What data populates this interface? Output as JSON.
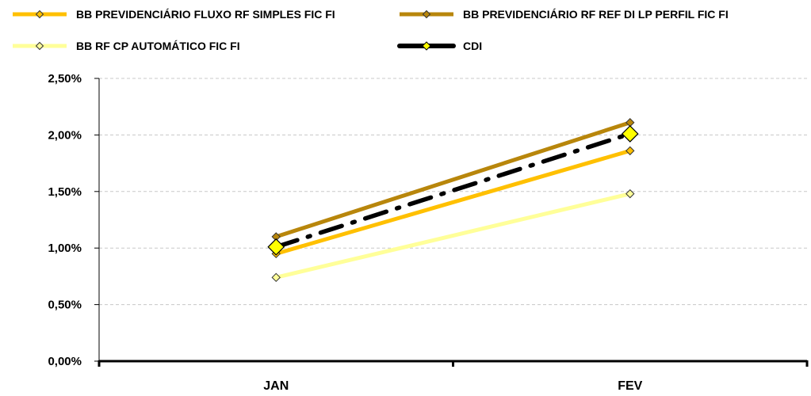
{
  "chart_data": {
    "type": "line",
    "categories": [
      "JAN",
      "FEV"
    ],
    "y_tick_labels": [
      "0,00%",
      "0,50%",
      "1,00%",
      "1,50%",
      "2,00%",
      "2,50%"
    ],
    "ylim": [
      0,
      2.5
    ],
    "y_unit": "percent",
    "grid": "horizontal-dashed",
    "legend_position": "top",
    "series": [
      {
        "name": "BB PREVIDENCIÁRIO FLUXO RF SIMPLES FIC FI",
        "values": [
          0.95,
          1.86
        ],
        "color": "#FFC000",
        "style": "solid",
        "marker": "diamond"
      },
      {
        "name": "BB PREVIDENCIÁRIO RF REF DI LP PERFIL FIC FI",
        "values": [
          1.1,
          2.11
        ],
        "color": "#B8860B",
        "style": "solid",
        "marker": "diamond"
      },
      {
        "name": "BB RF CP AUTOMÁTICO FIC FI",
        "values": [
          0.74,
          1.48
        ],
        "color": "#FFFF99",
        "style": "solid",
        "marker": "diamond"
      },
      {
        "name": "CDI",
        "values": [
          1.01,
          2.01
        ],
        "color": "#000000",
        "style": "dash-dot",
        "marker": "diamond-large",
        "marker_fill": "#FFFF00"
      }
    ]
  }
}
